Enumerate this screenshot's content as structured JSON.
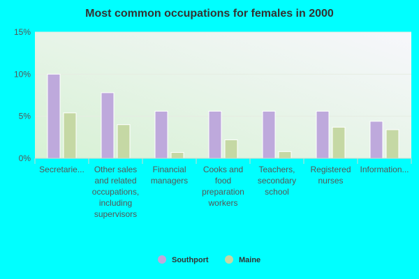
{
  "colors": {
    "background": "#00ffff",
    "southport": "#bea9dc",
    "maine": "#c5d8a4"
  },
  "chart_data": {
    "type": "bar",
    "title": "Most common occupations for females in 2000",
    "xlabel": "",
    "ylabel": "",
    "ylim": [
      0,
      15
    ],
    "yticks": [
      "0%",
      "5%",
      "10%",
      "15%"
    ],
    "grid": true,
    "legend_position": "bottom-center",
    "categories": [
      "Secretarie...",
      "Other sales and related occupations, including supervisors",
      "Financial managers",
      "Cooks and food preparation workers",
      "Teachers, secondary school",
      "Registered nurses",
      "Information..."
    ],
    "series": [
      {
        "name": "Southport",
        "values": [
          10.0,
          7.8,
          5.6,
          5.6,
          5.6,
          5.6,
          4.4
        ]
      },
      {
        "name": "Maine",
        "values": [
          5.4,
          4.0,
          0.7,
          2.2,
          0.8,
          3.7,
          3.4
        ]
      }
    ]
  }
}
